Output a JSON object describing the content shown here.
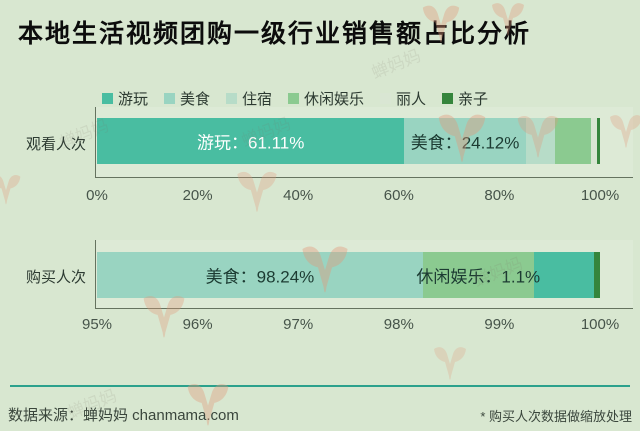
{
  "colors": {
    "background": "#d8e7d0",
    "axis": "#65735f",
    "divider_accent": "#2ba18c",
    "watermark": "#e2997b"
  },
  "footer": {
    "source": "数据来源：蝉妈妈 chanmama.com",
    "note": "* 购买人次数据做缩放处理"
  },
  "watermark": {
    "text": "蝉妈妈"
  },
  "chart_data": {
    "type": "bar",
    "orientation": "horizontal",
    "stacked": true,
    "title": "本地生活视频团购一级行业销售额占比分析",
    "legend": [
      "游玩",
      "美食",
      "住宿",
      "休闲娱乐",
      "丽人",
      "亲子"
    ],
    "legend_position": "top-center",
    "colors": {
      "游玩": "#49bda1",
      "美食": "#99d4c1",
      "住宿": "#b7dcc8",
      "休闲娱乐": "#8bca90",
      "丽人": "#d9e6d3",
      "亲子": "#35853c"
    },
    "charts": [
      {
        "category": "观看人次",
        "xlim": [
          0,
          100
        ],
        "ticks": [
          "0%",
          "20%",
          "40%",
          "60%",
          "80%",
          "100%"
        ],
        "series": [
          {
            "name": "游玩",
            "value": 61.11,
            "label": "游玩：61.11%",
            "label_color": "#ffffff"
          },
          {
            "name": "美食",
            "value": 24.12,
            "label": "美食：24.12%",
            "label_color": "#1c3b32"
          },
          {
            "name": "住宿",
            "value": 5.77
          },
          {
            "name": "休闲娱乐",
            "value": 7.3
          },
          {
            "name": "丽人",
            "value": 1.2
          },
          {
            "name": "亲子",
            "value": 0.5
          }
        ]
      },
      {
        "category": "购买人次",
        "xlim": [
          95,
          100
        ],
        "ticks": [
          "95%",
          "96%",
          "97%",
          "98%",
          "99%",
          "100%"
        ],
        "series": [
          {
            "name": "美食",
            "value": 98.24,
            "label": "美食：98.24%",
            "label_color": "#1c3b32"
          },
          {
            "name": "休闲娱乐",
            "value": 1.1,
            "label": "休闲娱乐：1.1%",
            "label_color": "#1c3b32"
          },
          {
            "name": "游玩",
            "value": 0.6
          },
          {
            "name": "亲子",
            "value": 0.06
          }
        ]
      }
    ]
  }
}
